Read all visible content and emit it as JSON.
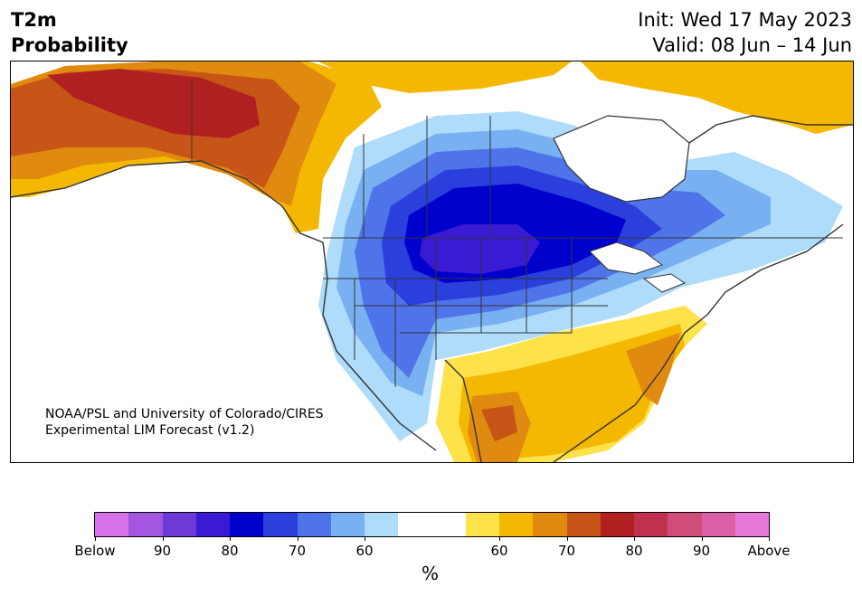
{
  "title": {
    "line1": "T2m",
    "line2": "Probability"
  },
  "header": {
    "init": "Init: Wed 17 May 2023",
    "valid": "Valid: 08 Jun – 14 Jun"
  },
  "credit": {
    "line1": "NOAA/PSL and University of Colorado/CIRES",
    "line2": "Experimental LIM Forecast (v1.2)"
  },
  "colorbar": {
    "colors": [
      "#d672e8",
      "#a456e0",
      "#6d3ad8",
      "#3a1ad2",
      "#0000cc",
      "#2b3fdc",
      "#4f73e8",
      "#78b0f2",
      "#aedcfa",
      "#ffffff",
      "#ffffff",
      "#fde24a",
      "#f5b800",
      "#e08a10",
      "#c85518",
      "#b02020",
      "#c03250",
      "#d04c7a",
      "#dc60a8",
      "#e878d8"
    ],
    "ticks": [
      "Below",
      "90",
      "80",
      "70",
      "60",
      "60",
      "70",
      "80",
      "90",
      "Above"
    ],
    "unit_label": "%"
  },
  "map_colors": {
    "warm_light": "#fde24a",
    "warm_mid": "#f5b800",
    "warm_orange": "#e08a10",
    "warm_dark": "#c85518",
    "warm_red": "#b02020",
    "cold_light": "#aedcfa",
    "cold_mid": "#78b0f2",
    "cold_blue": "#4f73e8",
    "cold_dark": "#2b3fdc",
    "cold_deep": "#0000cc",
    "cold_purple": "#3a1ad2",
    "border": "#333333"
  }
}
